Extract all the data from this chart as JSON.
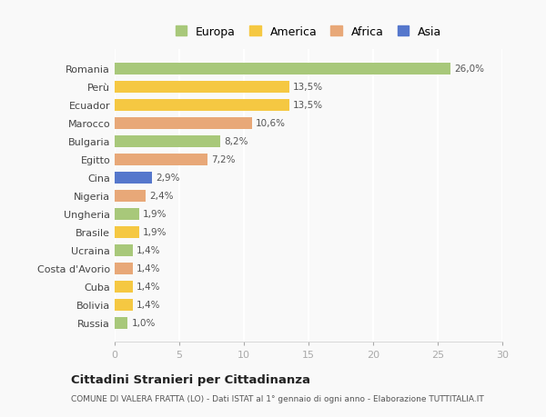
{
  "countries": [
    "Romania",
    "Perù",
    "Ecuador",
    "Marocco",
    "Bulgaria",
    "Egitto",
    "Cina",
    "Nigeria",
    "Ungheria",
    "Brasile",
    "Ucraina",
    "Costa d'Avorio",
    "Cuba",
    "Bolivia",
    "Russia"
  ],
  "values": [
    26.0,
    13.5,
    13.5,
    10.6,
    8.2,
    7.2,
    2.9,
    2.4,
    1.9,
    1.9,
    1.4,
    1.4,
    1.4,
    1.4,
    1.0
  ],
  "regions": [
    "Europa",
    "America",
    "America",
    "Africa",
    "Europa",
    "Africa",
    "Asia",
    "Africa",
    "Europa",
    "America",
    "Europa",
    "Africa",
    "America",
    "America",
    "Europa"
  ],
  "colors": {
    "Europa": "#a8c87a",
    "America": "#f5c842",
    "Africa": "#e8a878",
    "Asia": "#5577cc"
  },
  "labels": [
    "26,0%",
    "13,5%",
    "13,5%",
    "10,6%",
    "8,2%",
    "7,2%",
    "2,9%",
    "2,4%",
    "1,9%",
    "1,9%",
    "1,4%",
    "1,4%",
    "1,4%",
    "1,4%",
    "1,0%"
  ],
  "title": "Cittadini Stranieri per Cittadinanza",
  "subtitle": "COMUNE DI VALERA FRATTA (LO) - Dati ISTAT al 1° gennaio di ogni anno - Elaborazione TUTTITALIA.IT",
  "xlim": [
    0,
    30
  ],
  "xticks": [
    0,
    5,
    10,
    15,
    20,
    25,
    30
  ],
  "background_color": "#f9f9f9",
  "legend_order": [
    "Europa",
    "America",
    "Africa",
    "Asia"
  ]
}
